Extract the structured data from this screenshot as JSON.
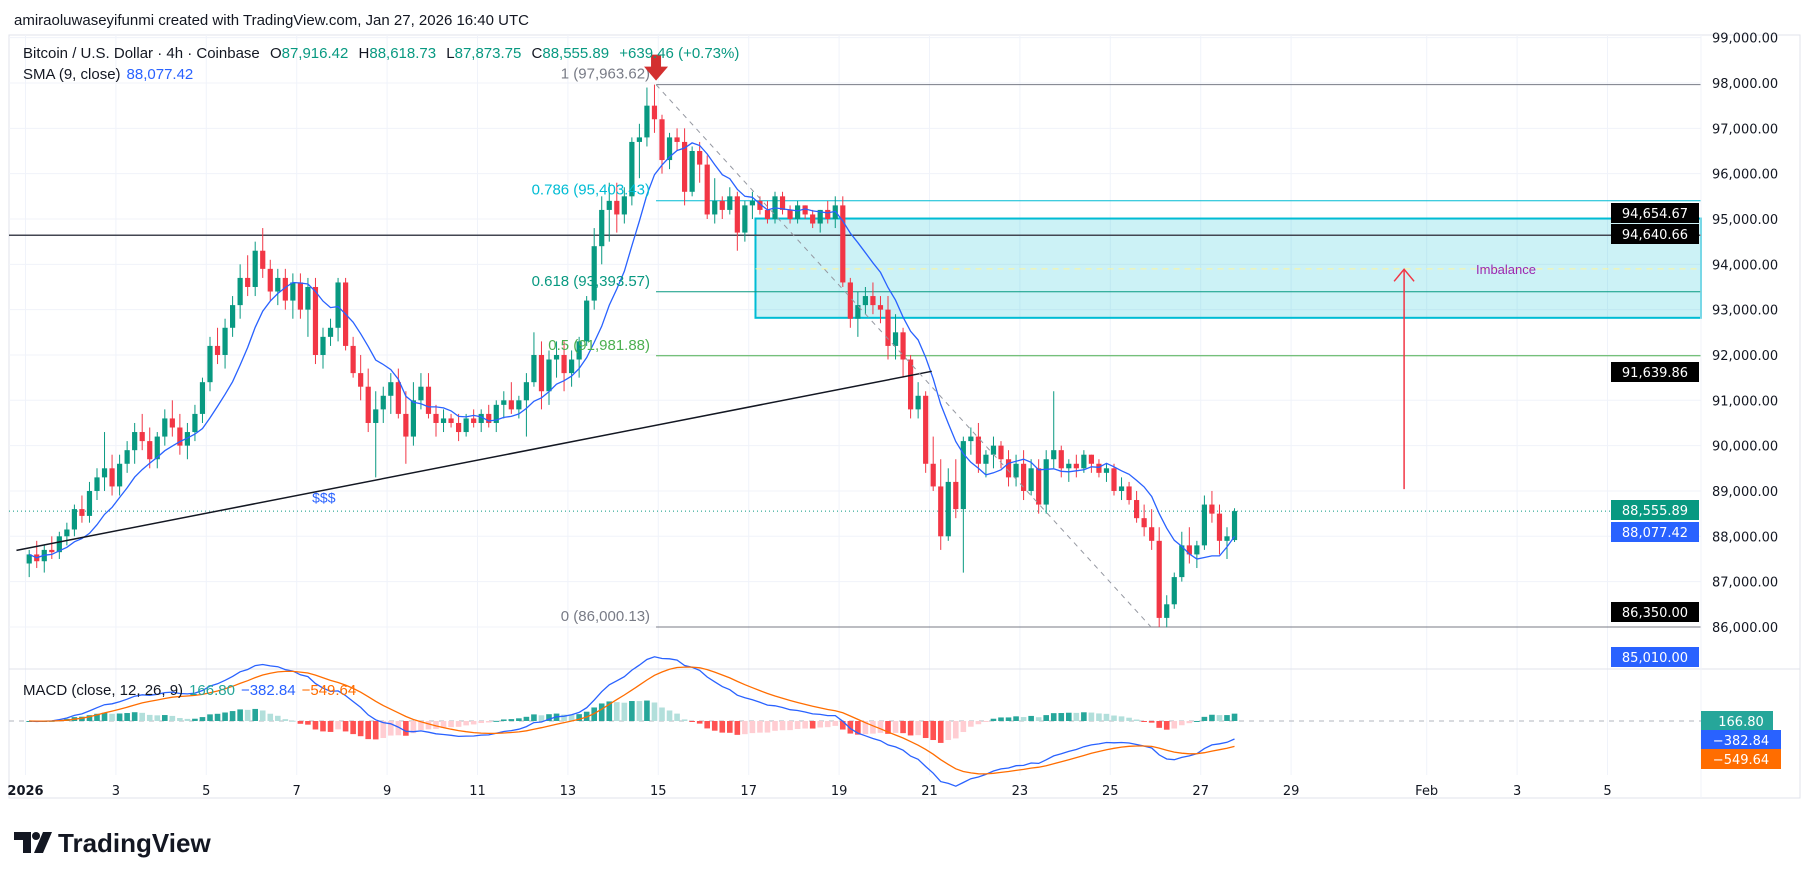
{
  "header": {
    "credit": "amiraoluwaseyifunmi created with TradingView.com, Jan 27, 2026 16:40 UTC"
  },
  "legend": {
    "symbol": "Bitcoin / U.S. Dollar · 4h · Coinbase",
    "o_label": "O",
    "o": "87,916.42",
    "h_label": "H",
    "h": "88,618.73",
    "l_label": "L",
    "l": "87,873.75",
    "c_label": "C",
    "c": "88,555.89",
    "change": "+639.46 (+0.73%)",
    "sma_label": "SMA (9, close)",
    "sma": "88,077.42",
    "macd_label": "MACD (close, 12, 26, 9)",
    "macd_hist": "166.80",
    "macd": "−382.84",
    "macd_signal": "−549.64"
  },
  "colors": {
    "up": "#089981",
    "down": "#f23645",
    "sma": "#2962ff",
    "macd": "#2962ff",
    "signal": "#ff6d00",
    "hist_up": "#26a69a",
    "hist_up_light": "#b2dfdb",
    "hist_down": "#ff5252",
    "hist_down_light": "#ffcdd2",
    "zone": "#00bcd4",
    "imbalance_text": "#9c27b0"
  },
  "price_axis": [
    "99,000.00",
    "98,000.00",
    "97,000.00",
    "96,000.00",
    "95,000.00",
    "94,000.00",
    "93,000.00",
    "92,000.00",
    "91,000.00",
    "90,000.00",
    "89,000.00",
    "88,000.00",
    "87,000.00",
    "86,000.00"
  ],
  "price_tags": [
    {
      "text": "94,654.67",
      "price": 94654.67,
      "bg": "#000000"
    },
    {
      "text": "94,640.66",
      "price": 94640.66,
      "bg": "#000000"
    },
    {
      "text": "91,639.86",
      "price": 91639.86,
      "bg": "#000000"
    },
    {
      "text": "88,555.89",
      "price": 88555.89,
      "bg": "#089981"
    },
    {
      "text": "88,077.42",
      "price": 88077.42,
      "bg": "#2962ff"
    },
    {
      "text": "86,350.00",
      "price": 86350.0,
      "bg": "#000000"
    },
    {
      "text": "85,010.00",
      "price": 85010.0,
      "bg": "#2962ff"
    }
  ],
  "macd_tags": [
    {
      "text": "166.80",
      "bg": "#26a69a"
    },
    {
      "text": "−382.84",
      "bg": "#2962ff"
    },
    {
      "text": "−549.64",
      "bg": "#ff6d00"
    }
  ],
  "time_axis": [
    {
      "label": "2026",
      "day": 1,
      "bold": true
    },
    {
      "label": "3",
      "day": 3
    },
    {
      "label": "5",
      "day": 5
    },
    {
      "label": "7",
      "day": 7
    },
    {
      "label": "9",
      "day": 9
    },
    {
      "label": "11",
      "day": 11
    },
    {
      "label": "13",
      "day": 13
    },
    {
      "label": "15",
      "day": 15
    },
    {
      "label": "17",
      "day": 17
    },
    {
      "label": "19",
      "day": 19
    },
    {
      "label": "21",
      "day": 21
    },
    {
      "label": "23",
      "day": 23
    },
    {
      "label": "25",
      "day": 25
    },
    {
      "label": "27",
      "day": 27
    },
    {
      "label": "29",
      "day": 29
    },
    {
      "label": "Feb",
      "day": 32
    },
    {
      "label": "3",
      "day": 34
    },
    {
      "label": "5",
      "day": 36
    }
  ],
  "drawings": {
    "resistance_line": 94640.66,
    "fib": {
      "from_day": 14.95,
      "levels": [
        {
          "label": "1 (97,963.62)",
          "price": 97963.62,
          "color": "#787b86"
        },
        {
          "label": "0.786 (95,403.43)",
          "price": 95403.43,
          "color": "#00bcd4"
        },
        {
          "label": "0.618 (93,393.57)",
          "price": 93393.57,
          "color": "#089981"
        },
        {
          "label": "0.5 (91,981.88)",
          "price": 91981.88,
          "color": "#4caf50"
        },
        {
          "label": "0 (86,000.13)",
          "price": 86000.13,
          "color": "#787b86"
        }
      ]
    },
    "imbalance_zone": {
      "label": "Imbalance",
      "from_day": 17.15,
      "top": 95010,
      "bottom": 92820,
      "mid": 93900
    },
    "trendline": {
      "start": {
        "day": 0.8,
        "price": 87690
      },
      "end": {
        "day": 21.05,
        "price": 91639.86
      }
    },
    "liquidity_label": {
      "text": "$$$",
      "day": 7.6,
      "price": 88750
    },
    "fib_diagonal": {
      "start": {
        "day": 14.95,
        "price": 97963.62
      },
      "end": {
        "day": 25.9,
        "price": 86000.13
      }
    },
    "target_arrow": {
      "day": 31.5,
      "from": 89040,
      "to": 93890
    },
    "last_price": 88555.89
  },
  "footer": {
    "logo_text": "TradingView"
  },
  "chart_data": {
    "type": "candlestick",
    "interval": "4h",
    "start": "2026-01-01 00:00",
    "ylim": [
      85500,
      99200
    ],
    "grid": true,
    "indicators": [
      "SMA (9, close)",
      "MACD (close, 12, 26, 9)"
    ],
    "candles": [
      [
        87400,
        87700,
        87100,
        87600
      ],
      [
        87600,
        87900,
        87300,
        87450
      ],
      [
        87450,
        87800,
        87200,
        87700
      ],
      [
        87700,
        88000,
        87500,
        87650
      ],
      [
        87650,
        88100,
        87500,
        88000
      ],
      [
        88000,
        88300,
        87800,
        88150
      ],
      [
        88150,
        88700,
        88000,
        88600
      ],
      [
        88600,
        88900,
        88300,
        88450
      ],
      [
        88450,
        89200,
        88300,
        89000
      ],
      [
        89000,
        89500,
        88800,
        89300
      ],
      [
        89300,
        90300,
        89000,
        89500
      ],
      [
        89500,
        89800,
        88900,
        89100
      ],
      [
        89100,
        89800,
        88900,
        89600
      ],
      [
        89600,
        90100,
        89400,
        89900
      ],
      [
        89900,
        90500,
        89600,
        90300
      ],
      [
        90300,
        90700,
        89900,
        90100
      ],
      [
        90100,
        90400,
        89500,
        89700
      ],
      [
        89700,
        90300,
        89500,
        90200
      ],
      [
        90200,
        90800,
        90000,
        90600
      ],
      [
        90600,
        91000,
        90200,
        90400
      ],
      [
        90400,
        90700,
        89800,
        90000
      ],
      [
        90000,
        90500,
        89700,
        90300
      ],
      [
        90300,
        90900,
        90100,
        90700
      ],
      [
        90700,
        91500,
        90500,
        91400
      ],
      [
        91400,
        92400,
        91200,
        92200
      ],
      [
        92200,
        92600,
        91800,
        92000
      ],
      [
        92000,
        92800,
        91700,
        92600
      ],
      [
        92600,
        93300,
        92400,
        93100
      ],
      [
        93100,
        94000,
        92800,
        93700
      ],
      [
        93700,
        94200,
        93300,
        93500
      ],
      [
        93500,
        94500,
        93300,
        94300
      ],
      [
        94300,
        94800,
        93700,
        93900
      ],
      [
        93900,
        94100,
        93200,
        93400
      ],
      [
        93400,
        93900,
        93100,
        93700
      ],
      [
        93700,
        93900,
        93000,
        93200
      ],
      [
        93200,
        93800,
        92800,
        93600
      ],
      [
        93600,
        93800,
        92800,
        93000
      ],
      [
        93000,
        93700,
        92400,
        93500
      ],
      [
        93500,
        93700,
        91800,
        92000
      ],
      [
        92000,
        92600,
        91700,
        92400
      ],
      [
        92400,
        92800,
        92200,
        92600
      ],
      [
        92600,
        93700,
        92300,
        93600
      ],
      [
        93600,
        93700,
        92100,
        92200
      ],
      [
        92200,
        92400,
        91500,
        91600
      ],
      [
        91600,
        92000,
        91000,
        91300
      ],
      [
        91300,
        91700,
        90300,
        90500
      ],
      [
        90500,
        91200,
        89300,
        90800
      ],
      [
        90800,
        91300,
        90500,
        91100
      ],
      [
        91100,
        91600,
        90700,
        91400
      ],
      [
        91400,
        91700,
        90600,
        90700
      ],
      [
        90700,
        91200,
        89600,
        90200
      ],
      [
        90200,
        91400,
        90000,
        91000
      ],
      [
        91000,
        91600,
        90800,
        91300
      ],
      [
        91300,
        91600,
        90600,
        90700
      ],
      [
        90700,
        90900,
        90200,
        90500
      ],
      [
        90500,
        90800,
        90300,
        90600
      ],
      [
        90600,
        90700,
        90400,
        90500
      ],
      [
        90500,
        90700,
        90100,
        90300
      ],
      [
        90300,
        90700,
        90200,
        90600
      ],
      [
        90600,
        90800,
        90400,
        90500
      ],
      [
        90500,
        90800,
        90300,
        90700
      ],
      [
        90700,
        90900,
        90400,
        90500
      ],
      [
        90500,
        91000,
        90300,
        90900
      ],
      [
        90900,
        91200,
        90600,
        91000
      ],
      [
        91000,
        91400,
        90700,
        90800
      ],
      [
        90800,
        91100,
        90600,
        91000
      ],
      [
        91000,
        91600,
        90200,
        91400
      ],
      [
        91400,
        92500,
        91300,
        92000
      ],
      [
        92000,
        92300,
        90800,
        91200
      ],
      [
        91200,
        92100,
        90900,
        91900
      ],
      [
        91900,
        92300,
        91500,
        92000
      ],
      [
        92000,
        92300,
        91200,
        91600
      ],
      [
        91600,
        92100,
        91300,
        91900
      ],
      [
        91900,
        92400,
        91500,
        92300
      ],
      [
        92300,
        93300,
        92200,
        93200
      ],
      [
        93200,
        94800,
        93000,
        94400
      ],
      [
        94400,
        95500,
        94000,
        95200
      ],
      [
        95200,
        95800,
        94500,
        95400
      ],
      [
        95400,
        95800,
        94700,
        95100
      ],
      [
        95100,
        95700,
        94900,
        95500
      ],
      [
        95500,
        96800,
        95300,
        96700
      ],
      [
        96700,
        97100,
        95900,
        96800
      ],
      [
        96800,
        97900,
        96600,
        97500
      ],
      [
        97500,
        97964,
        96900,
        97200
      ],
      [
        97200,
        97300,
        96000,
        96300
      ],
      [
        96300,
        96900,
        96100,
        96800
      ],
      [
        96800,
        97000,
        96500,
        96700
      ],
      [
        96700,
        97000,
        95300,
        95600
      ],
      [
        95600,
        96600,
        95500,
        96500
      ],
      [
        96500,
        96700,
        95800,
        96200
      ],
      [
        96200,
        96400,
        95000,
        95100
      ],
      [
        95100,
        95900,
        94900,
        95400
      ],
      [
        95400,
        95500,
        95000,
        95200
      ],
      [
        95200,
        95700,
        95100,
        95500
      ],
      [
        95500,
        95600,
        94300,
        94700
      ],
      [
        94700,
        95400,
        94500,
        95300
      ],
      [
        95300,
        95600,
        95000,
        95400
      ],
      [
        95400,
        95500,
        95100,
        95200
      ],
      [
        95200,
        95400,
        94900,
        95000
      ],
      [
        95000,
        95600,
        94900,
        95500
      ],
      [
        95500,
        95600,
        95100,
        95200
      ],
      [
        95200,
        95300,
        94900,
        95000
      ],
      [
        95000,
        95400,
        94900,
        95300
      ],
      [
        95300,
        95300,
        95000,
        95100
      ],
      [
        95100,
        95200,
        94800,
        94900
      ],
      [
        94900,
        95200,
        94700,
        95200
      ],
      [
        95200,
        95400,
        94900,
        95000
      ],
      [
        95000,
        95500,
        94800,
        95300
      ],
      [
        95300,
        95500,
        93500,
        93600
      ],
      [
        93600,
        93700,
        92600,
        92800
      ],
      [
        92800,
        93400,
        92400,
        93100
      ],
      [
        93100,
        93500,
        92900,
        93300
      ],
      [
        93300,
        93600,
        92900,
        93100
      ],
      [
        93100,
        93300,
        92700,
        93000
      ],
      [
        93000,
        93300,
        91900,
        92200
      ],
      [
        92200,
        92900,
        91900,
        92500
      ],
      [
        92500,
        92600,
        91500,
        91900
      ],
      [
        91900,
        92000,
        90600,
        90800
      ],
      [
        90800,
        91400,
        90600,
        91100
      ],
      [
        91100,
        91200,
        89400,
        89600
      ],
      [
        89600,
        90200,
        89000,
        89100
      ],
      [
        89100,
        89700,
        87700,
        88000
      ],
      [
        88000,
        89500,
        87900,
        89200
      ],
      [
        89200,
        89700,
        88400,
        88600
      ],
      [
        88600,
        90200,
        87200,
        90100
      ],
      [
        90100,
        90400,
        89800,
        90200
      ],
      [
        90200,
        90500,
        89400,
        89600
      ],
      [
        89600,
        89900,
        89300,
        89800
      ],
      [
        89800,
        90200,
        89500,
        90000
      ],
      [
        90000,
        90100,
        89500,
        89700
      ],
      [
        89700,
        89900,
        89100,
        89300
      ],
      [
        89300,
        89800,
        89100,
        89600
      ],
      [
        89600,
        89900,
        88800,
        89000
      ],
      [
        89000,
        89700,
        88900,
        89500
      ],
      [
        89500,
        89700,
        88500,
        88700
      ],
      [
        88700,
        89900,
        88500,
        89700
      ],
      [
        89700,
        91200,
        89500,
        89900
      ],
      [
        89900,
        90000,
        89300,
        89500
      ],
      [
        89500,
        89700,
        89200,
        89600
      ],
      [
        89600,
        89800,
        89300,
        89500
      ],
      [
        89500,
        89900,
        89400,
        89800
      ],
      [
        89800,
        89800,
        89400,
        89600
      ],
      [
        89600,
        89700,
        89300,
        89400
      ],
      [
        89400,
        89600,
        89200,
        89500
      ],
      [
        89500,
        89600,
        88900,
        89000
      ],
      [
        89000,
        89300,
        88800,
        89100
      ],
      [
        89100,
        89200,
        88700,
        88800
      ],
      [
        88800,
        89000,
        88300,
        88400
      ],
      [
        88400,
        88700,
        88000,
        88200
      ],
      [
        88200,
        88600,
        87700,
        87900
      ],
      [
        87900,
        88200,
        86000,
        86200
      ],
      [
        86200,
        86700,
        85990,
        86500
      ],
      [
        86500,
        87200,
        86400,
        87100
      ],
      [
        87100,
        88100,
        87000,
        87800
      ],
      [
        87800,
        88200,
        87400,
        87600
      ],
      [
        87600,
        87900,
        87300,
        87800
      ],
      [
        87800,
        88900,
        87700,
        88700
      ],
      [
        88700,
        89000,
        88300,
        88500
      ],
      [
        88500,
        88700,
        87600,
        87900
      ],
      [
        87900,
        88200,
        87500,
        88000
      ],
      [
        87916.42,
        88618.73,
        87873.75,
        88555.89
      ]
    ]
  }
}
